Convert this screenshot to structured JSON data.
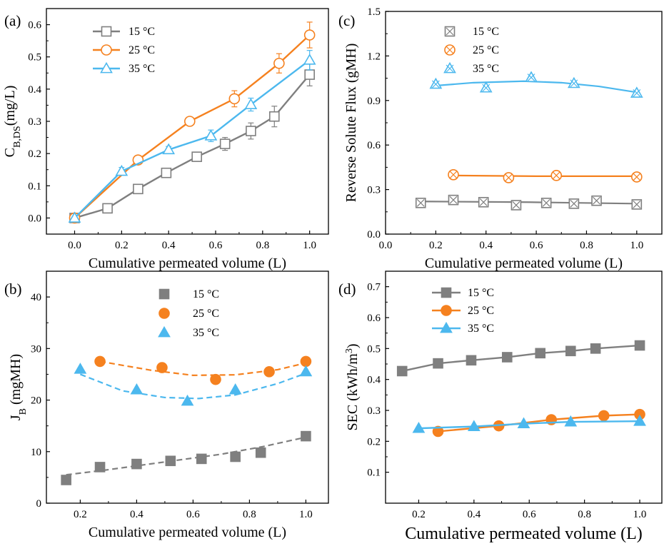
{
  "colors": {
    "c15": "#7f7f7f",
    "c25": "#f5811f",
    "c35": "#4cb8ee"
  },
  "series_labels": [
    "15 °C",
    "25 °C",
    "35 °C"
  ],
  "chart_data": [
    {
      "panel": "(a)",
      "type": "line",
      "ylabel_main": "C",
      "ylabel_sub": "B,DS",
      "ylabel_tail": "(mg/L)",
      "xlabel": "Cumulative permeated volume (L)",
      "xlim": [
        -0.12,
        1.08
      ],
      "ylim": [
        -0.05,
        0.65
      ],
      "xticks": [
        "0.0",
        "0.2",
        "0.4",
        "0.6",
        "0.8",
        "1.0"
      ],
      "yticks": [
        "0.0",
        "0.1",
        "0.2",
        "0.3",
        "0.4",
        "0.5",
        "0.6"
      ],
      "legend": "top-left",
      "series": [
        {
          "name": "15 °C",
          "marker": "square-open",
          "x": [
            0,
            0.14,
            0.27,
            0.39,
            0.52,
            0.64,
            0.75,
            0.85,
            1.0
          ],
          "y": [
            0,
            0.03,
            0.09,
            0.14,
            0.19,
            0.23,
            0.27,
            0.315,
            0.445
          ],
          "err": [
            0.005,
            0.008,
            0.012,
            0.01,
            0.008,
            0.02,
            0.025,
            0.032,
            0.035
          ]
        },
        {
          "name": "25 °C",
          "marker": "circle-open",
          "x": [
            0,
            0.27,
            0.49,
            0.68,
            0.87,
            1.0
          ],
          "y": [
            0,
            0.18,
            0.3,
            0.37,
            0.48,
            0.568
          ],
          "err": [
            0.005,
            0.012,
            0.01,
            0.025,
            0.03,
            0.04
          ]
        },
        {
          "name": "35 °C",
          "marker": "triangle-open",
          "x": [
            0,
            0.2,
            0.4,
            0.58,
            0.75,
            1.0
          ],
          "y": [
            0,
            0.145,
            0.212,
            0.255,
            0.352,
            0.49
          ],
          "err": [
            0.005,
            0.012,
            0.01,
            0.018,
            0.02,
            0.03
          ]
        }
      ]
    },
    {
      "panel": "(c)",
      "type": "scatter",
      "ylabel": "Reverse Solute Flux (gMH)",
      "xlabel": "Cumulative permeated volume (L)",
      "xlim": [
        0,
        1.1
      ],
      "ylim": [
        0,
        1.5
      ],
      "xticks": [
        "0.0",
        "0.2",
        "0.4",
        "0.6",
        "0.8",
        "1.0"
      ],
      "yticks": [
        "0.0",
        "0.3",
        "0.6",
        "0.9",
        "1.2",
        "1.5"
      ],
      "legend": "top-left",
      "series": [
        {
          "name": "15 °C",
          "marker": "square-x",
          "x": [
            0.14,
            0.27,
            0.39,
            0.52,
            0.64,
            0.75,
            0.84,
            1.0
          ],
          "y": [
            0.21,
            0.23,
            0.215,
            0.195,
            0.21,
            0.205,
            0.225,
            0.2
          ],
          "fit": [
            [
              0.14,
              0.22
            ],
            [
              0.57,
              0.215
            ],
            [
              1.0,
              0.205
            ]
          ]
        },
        {
          "name": "25 °C",
          "marker": "circle-x",
          "x": [
            0.27,
            0.49,
            0.68,
            1.0
          ],
          "y": [
            0.4,
            0.38,
            0.395,
            0.385
          ],
          "fit": [
            [
              0.27,
              0.395
            ],
            [
              0.6,
              0.39
            ],
            [
              1.0,
              0.39
            ]
          ]
        },
        {
          "name": "35 °C",
          "marker": "triangle-x",
          "x": [
            0.2,
            0.4,
            0.58,
            0.75,
            1.0
          ],
          "y": [
            1.01,
            0.985,
            1.055,
            1.015,
            0.95
          ],
          "fit": [
            [
              0.2,
              1.0
            ],
            [
              0.35,
              1.02
            ],
            [
              0.55,
              1.03
            ],
            [
              0.7,
              1.02
            ],
            [
              0.85,
              0.995
            ],
            [
              1.0,
              0.955
            ]
          ]
        }
      ]
    },
    {
      "panel": "(b)",
      "type": "scatter",
      "ylabel_main": "J",
      "ylabel_sub": "B",
      "ylabel_tail": " (mgMH)",
      "xlabel": "Cumulative permeated volume (L)",
      "xlim": [
        0.08,
        1.08
      ],
      "ylim": [
        0,
        45
      ],
      "xticks": [
        "0.2",
        "0.4",
        "0.6",
        "0.8",
        "1.0"
      ],
      "yticks": [
        "0",
        "10",
        "20",
        "30",
        "40"
      ],
      "legend": "top-center",
      "series": [
        {
          "name": "15 °C",
          "marker": "square-filled",
          "x": [
            0.15,
            0.27,
            0.4,
            0.52,
            0.63,
            0.75,
            0.84,
            1.0
          ],
          "y": [
            4.5,
            7.0,
            7.6,
            8.2,
            8.6,
            9.0,
            9.8,
            13.0
          ],
          "fit": [
            [
              0.15,
              5.5
            ],
            [
              0.3,
              6.5
            ],
            [
              0.5,
              8.0
            ],
            [
              0.7,
              9.5
            ],
            [
              0.85,
              11.0
            ],
            [
              1.0,
              12.8
            ]
          ]
        },
        {
          "name": "25 °C",
          "marker": "circle-filled",
          "x": [
            0.27,
            0.49,
            0.68,
            0.87,
            1.0
          ],
          "y": [
            27.5,
            26.3,
            24.0,
            25.5,
            27.5
          ],
          "fit": [
            [
              0.27,
              27.5
            ],
            [
              0.45,
              25.8
            ],
            [
              0.6,
              24.8
            ],
            [
              0.75,
              24.9
            ],
            [
              0.9,
              25.9
            ],
            [
              1.0,
              27.2
            ]
          ]
        },
        {
          "name": "35 °C",
          "marker": "triangle-filled",
          "x": [
            0.2,
            0.4,
            0.58,
            0.75,
            1.0
          ],
          "y": [
            26.0,
            22.0,
            19.8,
            22.0,
            25.5
          ],
          "fit": [
            [
              0.2,
              25.0
            ],
            [
              0.35,
              21.8
            ],
            [
              0.5,
              20.5
            ],
            [
              0.62,
              20.3
            ],
            [
              0.75,
              21.0
            ],
            [
              0.9,
              23.2
            ],
            [
              1.0,
              25.2
            ]
          ]
        }
      ]
    },
    {
      "panel": "(d)",
      "type": "line",
      "ylabel_main": "SEC (kWh/m",
      "ylabel_sup": "3",
      "ylabel_tail": ")",
      "xlabel": "Cumulative permeated volume (L)",
      "xlim": [
        0.08,
        1.08
      ],
      "ylim": [
        0,
        0.75
      ],
      "xticks": [
        "0.2",
        "0.4",
        "0.6",
        "0.8",
        "1.0"
      ],
      "yticks": [
        "0.1",
        "0.2",
        "0.3",
        "0.4",
        "0.5",
        "0.6",
        "0.7"
      ],
      "legend": "top-left",
      "series": [
        {
          "name": "15 °C",
          "marker": "square-filled",
          "x": [
            0.14,
            0.27,
            0.39,
            0.52,
            0.64,
            0.75,
            0.84,
            1.0
          ],
          "y": [
            0.427,
            0.452,
            0.462,
            0.472,
            0.485,
            0.492,
            0.5,
            0.51
          ]
        },
        {
          "name": "25 °C",
          "marker": "circle-filled",
          "x": [
            0.27,
            0.49,
            0.68,
            0.87,
            1.0
          ],
          "y": [
            0.232,
            0.25,
            0.27,
            0.283,
            0.287
          ]
        },
        {
          "name": "35 °C",
          "marker": "triangle-filled",
          "x": [
            0.2,
            0.4,
            0.58,
            0.75,
            1.0
          ],
          "y": [
            0.242,
            0.248,
            0.257,
            0.263,
            0.265
          ]
        }
      ]
    }
  ]
}
